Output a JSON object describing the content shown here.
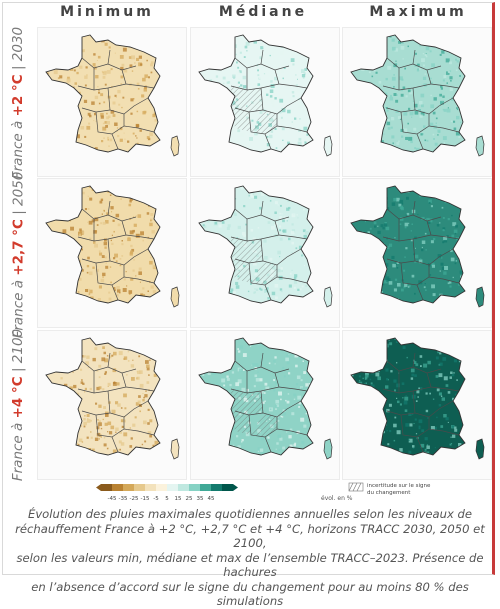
{
  "columns": [
    "Minimum",
    "Médiane",
    "Maximum"
  ],
  "rows": [
    {
      "prefix": "France à ",
      "warming": "+2 °C",
      "horizon": " | 2030"
    },
    {
      "prefix": "France à ",
      "warming": "+2,7 °C",
      "horizon": " | 2050"
    },
    {
      "prefix": "France à ",
      "warming": "+4 °C",
      "horizon": " | 2100"
    }
  ],
  "colors": {
    "accent_red": "#d23b2c",
    "scale": [
      "#8a5a1c",
      "#b98232",
      "#d4a859",
      "#e6c98d",
      "#f3e2bc",
      "#fbf2dc",
      "#e4f5f1",
      "#bfe8e0",
      "#86d2c4",
      "#3fa896",
      "#137a6d",
      "#00564b"
    ]
  },
  "panels": [
    {
      "row": 0,
      "col": 0,
      "fill": "#f2dfb2",
      "hatch": false
    },
    {
      "row": 0,
      "col": 1,
      "fill": "#e6f6f3",
      "hatch": true
    },
    {
      "row": 0,
      "col": 2,
      "fill": "#a8ddd2",
      "hatch": false
    },
    {
      "row": 1,
      "col": 0,
      "fill": "#f1dcab",
      "hatch": false
    },
    {
      "row": 1,
      "col": 1,
      "fill": "#d4f0eb",
      "hatch": true
    },
    {
      "row": 1,
      "col": 2,
      "fill": "#2d8b7c",
      "hatch": false
    },
    {
      "row": 2,
      "col": 0,
      "fill": "#f3e3bf",
      "hatch": false
    },
    {
      "row": 2,
      "col": 1,
      "fill": "#8fd3c6",
      "hatch": true
    },
    {
      "row": 2,
      "col": 2,
      "fill": "#0e5e52",
      "hatch": false
    }
  ],
  "legend": {
    "ticks": [
      "-45",
      "-35",
      "-25",
      "-15",
      "-5",
      "5",
      "15",
      "25",
      "35",
      "45"
    ],
    "unit": "évol. en %",
    "hatch_label": [
      "incertitude sur le signe",
      "du changement"
    ]
  },
  "caption": [
    "Évolution des pluies maximales quotidiennes annuelles selon les niveaux de",
    "réchauffement France à +2 °C, +2,7 °C et +4 °C, horizons TRACC 2030, 2050 et 2100,",
    "selon les valeurs min, médiane et max de l’ensemble TRACC–2023. Présence de hachures",
    "en l’absence d’accord sur le signe du changement pour au moins 80 % des simulations"
  ]
}
